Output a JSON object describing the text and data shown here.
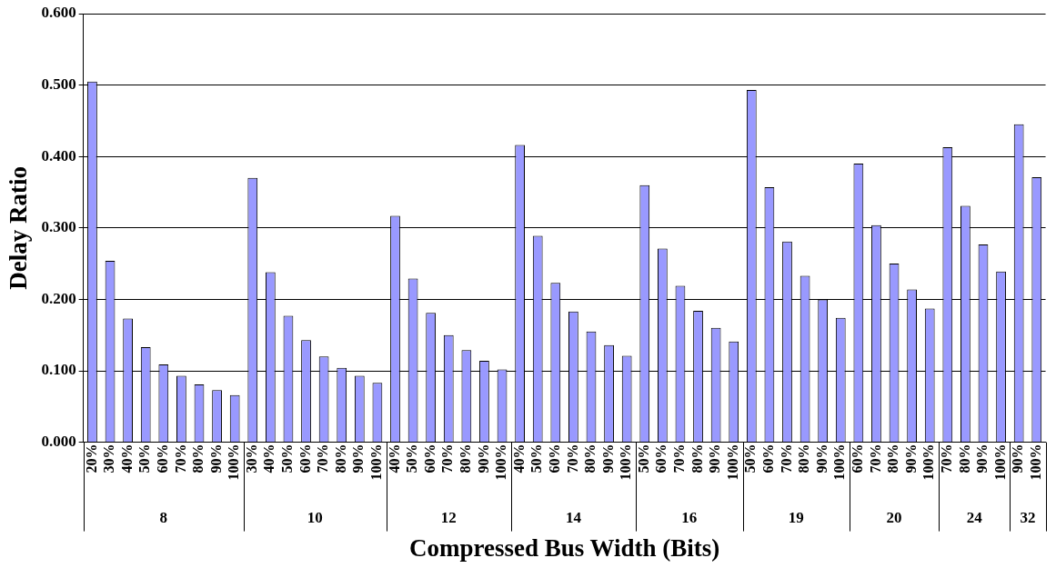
{
  "chart_data": {
    "type": "bar",
    "xlabel": "Compressed Bus Width (Bits)",
    "ylabel": "Delay Ratio",
    "categories": [
      "20%",
      "30%",
      "40%",
      "50%",
      "60%",
      "70%",
      "80%",
      "90%",
      "100%",
      "30%",
      "40%",
      "50%",
      "60%",
      "70%",
      "80%",
      "90%",
      "100%",
      "40%",
      "50%",
      "60%",
      "70%",
      "80%",
      "90%",
      "100%",
      "40%",
      "50%",
      "60%",
      "70%",
      "80%",
      "90%",
      "100%",
      "50%",
      "60%",
      "70%",
      "80%",
      "90%",
      "100%",
      "50%",
      "60%",
      "70%",
      "80%",
      "90%",
      "100%",
      "60%",
      "70%",
      "80%",
      "90%",
      "100%",
      "70%",
      "80%",
      "90%",
      "100%",
      "90%",
      "100%"
    ],
    "values": [
      0.505,
      0.254,
      0.173,
      0.133,
      0.109,
      0.093,
      0.081,
      0.073,
      0.066,
      0.37,
      0.238,
      0.177,
      0.143,
      0.12,
      0.104,
      0.093,
      0.083,
      0.317,
      0.229,
      0.181,
      0.15,
      0.129,
      0.114,
      0.102,
      0.416,
      0.289,
      0.223,
      0.183,
      0.155,
      0.136,
      0.121,
      0.36,
      0.271,
      0.219,
      0.184,
      0.16,
      0.141,
      0.493,
      0.357,
      0.281,
      0.233,
      0.2,
      0.174,
      0.39,
      0.304,
      0.25,
      0.214,
      0.187,
      0.413,
      0.331,
      0.277,
      0.239,
      0.445,
      0.371
    ],
    "color": "#9999ff",
    "annotations": [
      "8",
      "10",
      "12",
      "14",
      "16",
      "19",
      "20",
      "24",
      "32"
    ],
    "ylim": [
      0,
      0.6
    ],
    "yticks": [
      {
        "value": 0,
        "label": "0.000"
      },
      {
        "value": 0.1,
        "label": "0.100"
      },
      {
        "value": 0.2,
        "label": "0.200"
      },
      {
        "value": 0.3,
        "label": "0.300"
      },
      {
        "value": 0.4,
        "label": "0.400"
      },
      {
        "value": 0.5,
        "label": "0.500"
      },
      {
        "value": 0.6,
        "label": "0.600"
      }
    ],
    "grid": "y"
  }
}
